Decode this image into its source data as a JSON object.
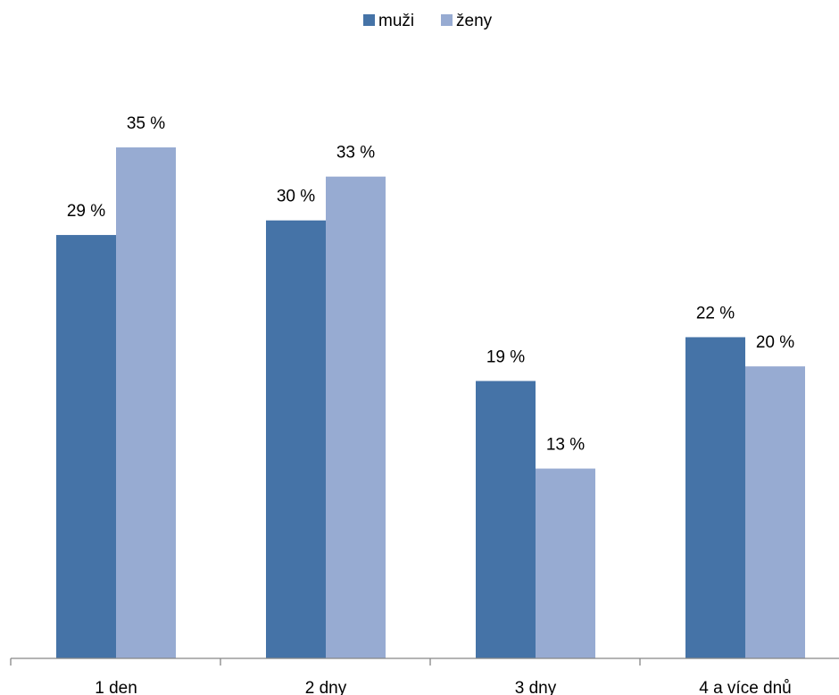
{
  "chart_data": {
    "type": "bar",
    "title": "",
    "xlabel": "",
    "ylabel": "",
    "categories": [
      "1 den",
      "2 dny",
      "3 dny",
      "4 a více dnů"
    ],
    "series": [
      {
        "name": "muži",
        "values": [
          29,
          30,
          19,
          22
        ],
        "labels": [
          "29 %",
          "30 %",
          "19 %",
          "22 %"
        ],
        "color": "#4573A7"
      },
      {
        "name": "ženy",
        "values": [
          35,
          33,
          13,
          20
        ],
        "labels": [
          "35 %",
          "33 %",
          "13 %",
          "20 %"
        ],
        "color": "#97ABD2"
      }
    ],
    "ylim": [
      0,
      40
    ],
    "grid": false,
    "legend_position": "top"
  }
}
